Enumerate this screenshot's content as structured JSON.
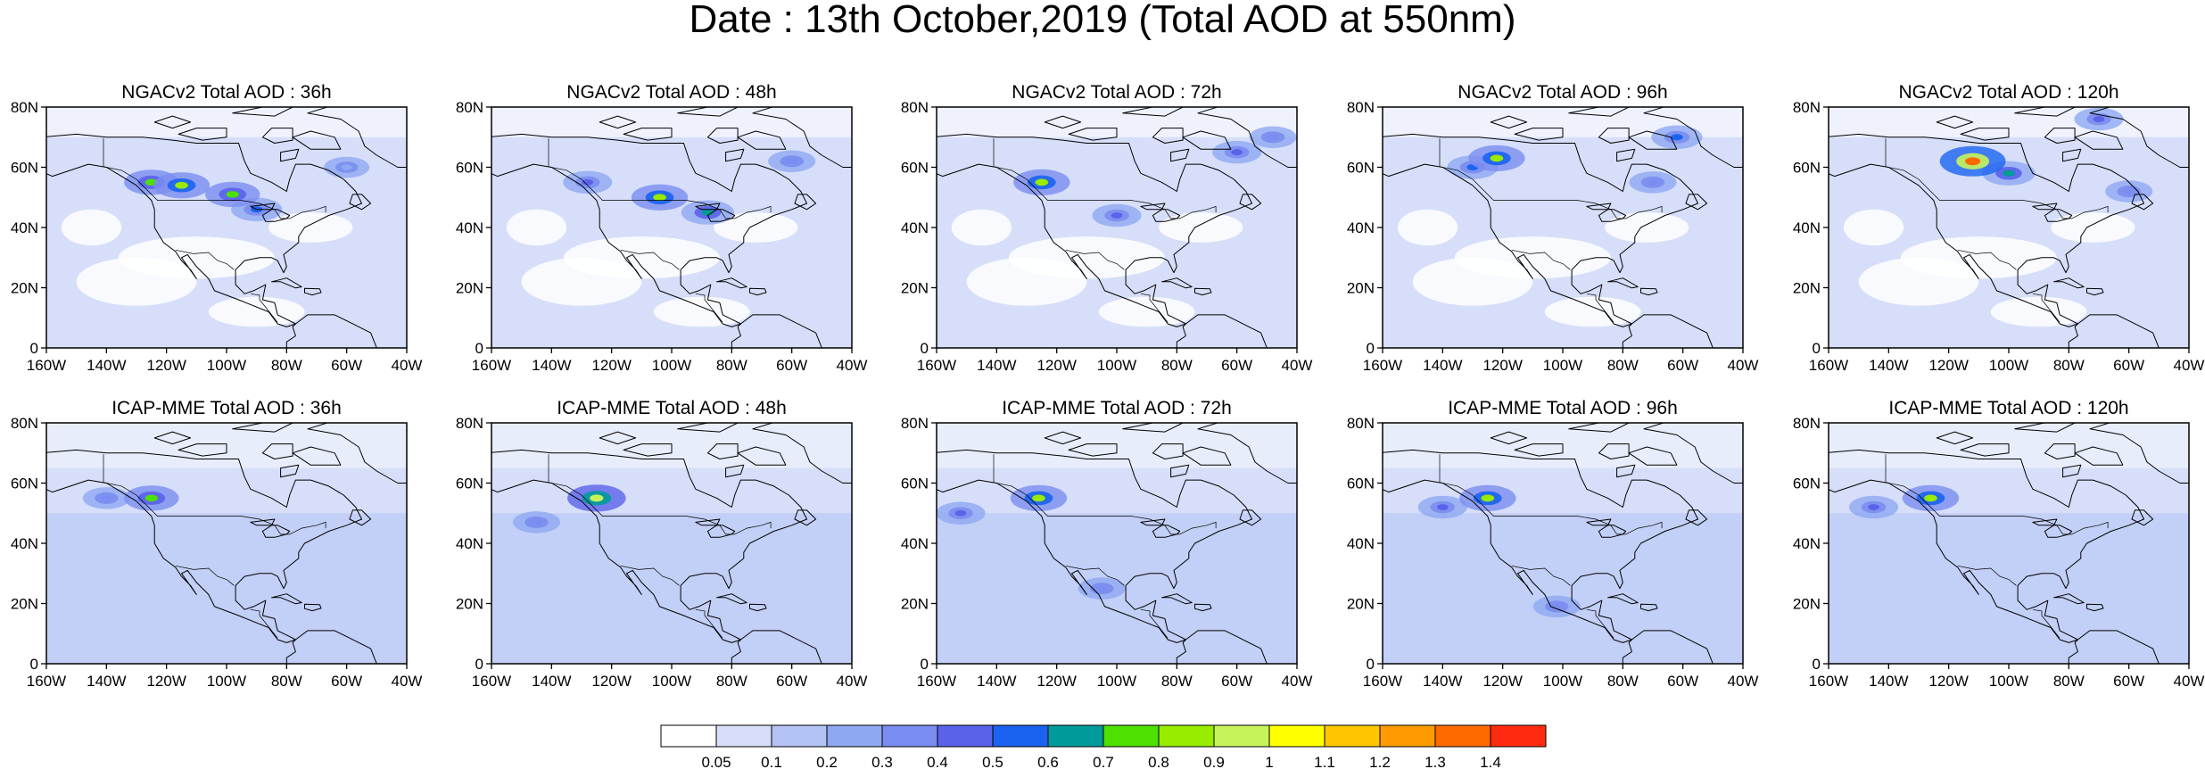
{
  "title": "Date : 13th October,2019 (Total AOD at 550nm)",
  "lat_ticks": [
    "0",
    "20N",
    "40N",
    "60N",
    "80N"
  ],
  "lon_ticks": [
    "160W",
    "140W",
    "120W",
    "100W",
    "80W",
    "60W",
    "40W"
  ],
  "map_extent": {
    "lon": [
      -160,
      -40
    ],
    "lat": [
      0,
      80
    ]
  },
  "panels": [
    {
      "title": "NGACv2 Total AOD : 36h",
      "model": "NGACv2",
      "lead": "36h",
      "plumes": [
        {
          "lon": -115,
          "lat": 54,
          "level": 0.8
        },
        {
          "lon": -98,
          "lat": 51,
          "level": 0.7
        },
        {
          "lon": -125,
          "lat": 55,
          "level": 0.7
        },
        {
          "lon": -90,
          "lat": 46,
          "level": 0.5
        },
        {
          "lon": -60,
          "lat": 60,
          "level": 0.2
        }
      ]
    },
    {
      "title": "NGACv2 Total AOD : 48h",
      "model": "NGACv2",
      "lead": "48h",
      "plumes": [
        {
          "lon": -104,
          "lat": 50,
          "level": 0.8
        },
        {
          "lon": -88,
          "lat": 45,
          "level": 0.6
        },
        {
          "lon": -128,
          "lat": 55,
          "level": 0.4
        },
        {
          "lon": -60,
          "lat": 62,
          "level": 0.3
        }
      ]
    },
    {
      "title": "NGACv2 Total AOD : 72h",
      "model": "NGACv2",
      "lead": "72h",
      "plumes": [
        {
          "lon": -125,
          "lat": 55,
          "level": 0.8
        },
        {
          "lon": -60,
          "lat": 65,
          "level": 0.4
        },
        {
          "lon": -100,
          "lat": 44,
          "level": 0.4
        },
        {
          "lon": -48,
          "lat": 70,
          "level": 0.3
        }
      ]
    },
    {
      "title": "NGACv2 Total AOD : 96h",
      "model": "NGACv2",
      "lead": "96h",
      "plumes": [
        {
          "lon": -122,
          "lat": 63,
          "level": 0.8
        },
        {
          "lon": -130,
          "lat": 60,
          "level": 0.5
        },
        {
          "lon": -62,
          "lat": 70,
          "level": 0.5
        },
        {
          "lon": -70,
          "lat": 55,
          "level": 0.3
        }
      ]
    },
    {
      "title": "NGACv2 Total AOD : 120h",
      "model": "NGACv2",
      "lead": "120h",
      "plumes": [
        {
          "lon": -112,
          "lat": 62,
          "level": 1.3
        },
        {
          "lon": -100,
          "lat": 58,
          "level": 0.6
        },
        {
          "lon": -70,
          "lat": 76,
          "level": 0.4
        },
        {
          "lon": -60,
          "lat": 52,
          "level": 0.3
        }
      ]
    },
    {
      "title": "ICAP-MME Total AOD : 36h",
      "model": "ICAP-MME",
      "lead": "36h",
      "plumes": [
        {
          "lon": -125,
          "lat": 55,
          "level": 0.7
        },
        {
          "lon": -140,
          "lat": 55,
          "level": 0.3
        }
      ]
    },
    {
      "title": "ICAP-MME Total AOD : 48h",
      "model": "ICAP-MME",
      "lead": "48h",
      "plumes": [
        {
          "lon": -125,
          "lat": 55,
          "level": 0.9
        },
        {
          "lon": -145,
          "lat": 47,
          "level": 0.3
        }
      ]
    },
    {
      "title": "ICAP-MME Total AOD : 72h",
      "model": "ICAP-MME",
      "lead": "72h",
      "plumes": [
        {
          "lon": -152,
          "lat": 50,
          "level": 0.4
        },
        {
          "lon": -126,
          "lat": 55,
          "level": 0.8
        },
        {
          "lon": -105,
          "lat": 25,
          "level": 0.3
        }
      ]
    },
    {
      "title": "ICAP-MME Total AOD : 96h",
      "model": "ICAP-MME",
      "lead": "96h",
      "plumes": [
        {
          "lon": -140,
          "lat": 52,
          "level": 0.4
        },
        {
          "lon": -125,
          "lat": 55,
          "level": 0.8
        },
        {
          "lon": -102,
          "lat": 19,
          "level": 0.3
        }
      ]
    },
    {
      "title": "ICAP-MME Total AOD : 120h",
      "model": "ICAP-MME",
      "lead": "120h",
      "plumes": [
        {
          "lon": -145,
          "lat": 52,
          "level": 0.4
        },
        {
          "lon": -126,
          "lat": 55,
          "level": 0.8
        }
      ]
    }
  ],
  "colorbar": {
    "labels": [
      "0.05",
      "0.1",
      "0.2",
      "0.3",
      "0.4",
      "0.5",
      "0.6",
      "0.7",
      "0.8",
      "0.9",
      "1",
      "1.1",
      "1.2",
      "1.3",
      "1.4"
    ],
    "colors": [
      "#ffffff",
      "#d6def9",
      "#b2c3f4",
      "#8fa8f2",
      "#7a8df0",
      "#5a62ea",
      "#1a63f0",
      "#009a9a",
      "#4de000",
      "#97ec00",
      "#c6f35a",
      "#ffff00",
      "#ffc600",
      "#ff9b00",
      "#ff6a00",
      "#ff2a10"
    ]
  }
}
